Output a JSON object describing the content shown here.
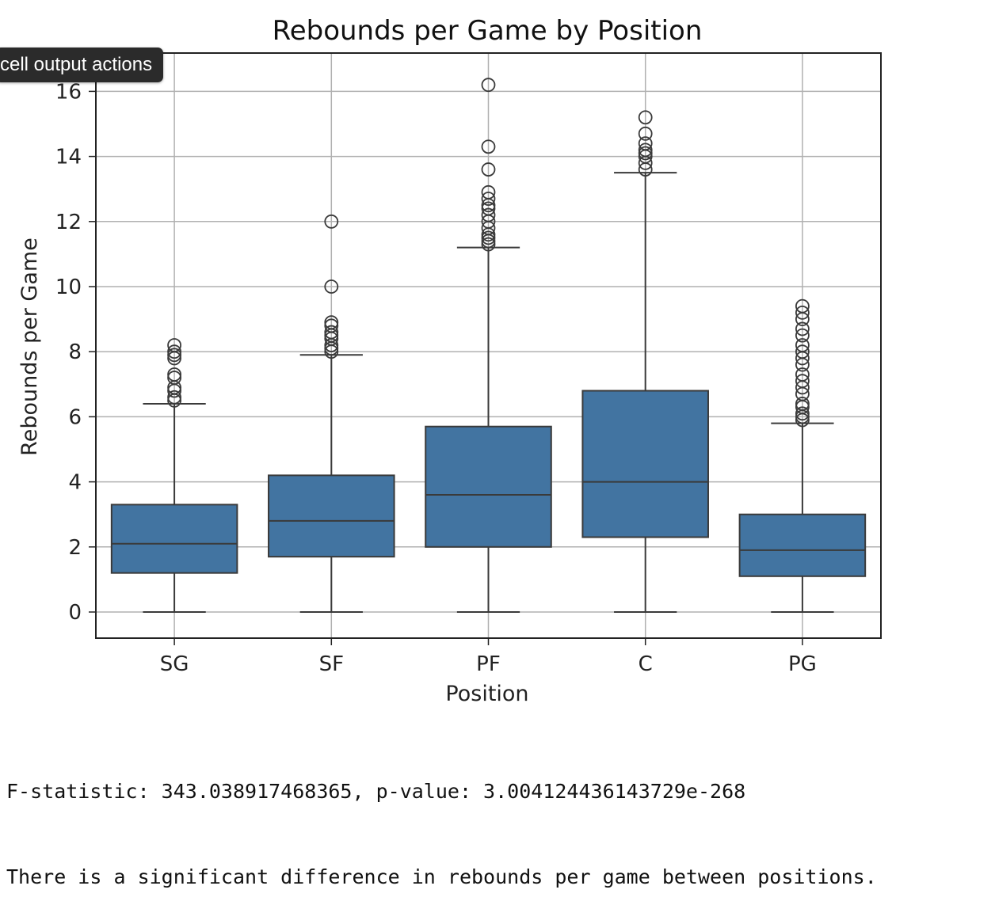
{
  "tooltip": {
    "label": "cell output actions"
  },
  "chart_data": {
    "type": "box",
    "title": "Rebounds per Game by Position",
    "xlabel": "Position",
    "ylabel": "Rebounds per Game",
    "categories": [
      "SG",
      "SF",
      "PF",
      "C",
      "PG"
    ],
    "yticks": [
      0,
      2,
      4,
      6,
      8,
      10,
      12,
      14,
      16
    ],
    "ylim": [
      -0.8,
      16.5
    ],
    "grid": true,
    "box_color": "#4274a1",
    "edge_color": "#3a3a3a",
    "grid_color": "#b0b0b0",
    "boxes": [
      {
        "category": "SG",
        "whisker_low": 0,
        "q1": 1.2,
        "median": 2.1,
        "q3": 3.3,
        "whisker_high": 6.4,
        "outliers": [
          6.5,
          6.6,
          6.8,
          6.9,
          7.2,
          7.3,
          7.8,
          7.9,
          8.0,
          8.2
        ]
      },
      {
        "category": "SF",
        "whisker_low": 0,
        "q1": 1.7,
        "median": 2.8,
        "q3": 4.2,
        "whisker_high": 7.9,
        "outliers": [
          8.0,
          8.1,
          8.2,
          8.4,
          8.5,
          8.6,
          8.8,
          8.9,
          10.0,
          12.0
        ]
      },
      {
        "category": "PF",
        "whisker_low": 0,
        "q1": 2.0,
        "median": 3.6,
        "q3": 5.7,
        "whisker_high": 11.2,
        "outliers": [
          11.3,
          11.4,
          11.5,
          11.6,
          11.8,
          12.0,
          12.2,
          12.4,
          12.5,
          12.7,
          12.9,
          13.6,
          14.3,
          16.2
        ]
      },
      {
        "category": "C",
        "whisker_low": 0,
        "q1": 2.3,
        "median": 4.0,
        "q3": 6.8,
        "whisker_high": 13.5,
        "outliers": [
          13.6,
          13.8,
          14.0,
          14.1,
          14.2,
          14.4,
          14.7,
          15.2
        ]
      },
      {
        "category": "PG",
        "whisker_low": 0,
        "q1": 1.1,
        "median": 1.9,
        "q3": 3.0,
        "whisker_high": 5.8,
        "outliers": [
          5.9,
          6.0,
          6.1,
          6.3,
          6.4,
          6.7,
          6.9,
          7.1,
          7.3,
          7.6,
          7.8,
          8.0,
          8.2,
          8.5,
          8.7,
          9.0,
          9.2,
          9.4
        ]
      }
    ]
  },
  "output": {
    "line1": "F-statistic: 343.038917468365, p-value: 3.004124436143729e-268",
    "line2": "There is a significant difference in rebounds per game between positions."
  }
}
